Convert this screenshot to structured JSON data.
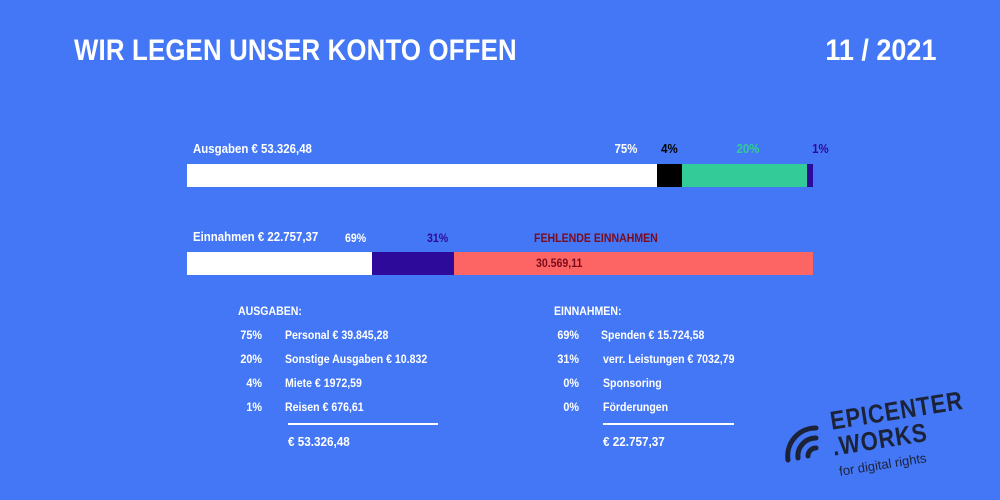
{
  "header": {
    "title": "WIR LEGEN UNSER KONTO OFFEN",
    "period": "11 / 2021"
  },
  "colors": {
    "background": "#4477f5",
    "white": "#ffffff",
    "black": "#000000",
    "green": "#33cc99",
    "navy": "#2d0a99",
    "red": "#fd6464",
    "dark_red": "#7a0b1e"
  },
  "chart_data": [
    {
      "type": "bar",
      "orientation": "horizontal-stacked",
      "label": "Ausgaben € 53.326,48",
      "segments": [
        {
          "name": "Personal",
          "percent": 75,
          "label": "75%",
          "color": "#ffffff",
          "label_color": "#ffffff"
        },
        {
          "name": "Miete",
          "percent": 4,
          "label": "4%",
          "color": "#000000",
          "label_color": "#000000"
        },
        {
          "name": "Sonstige Ausgaben",
          "percent": 20,
          "label": "20%",
          "color": "#33cc99",
          "label_color": "#33cc99"
        },
        {
          "name": "Reisen",
          "percent": 1,
          "label": "1%",
          "color": "#2d0a99",
          "label_color": "#2d0a99"
        }
      ]
    },
    {
      "type": "bar",
      "orientation": "horizontal-stacked",
      "label": "Einnahmen € 22.757,37",
      "segments": [
        {
          "name": "Spenden",
          "value": 15724.58,
          "label": "69%",
          "color": "#ffffff",
          "label_color": "#ffffff"
        },
        {
          "name": "verr. Leistungen",
          "value": 7032.79,
          "label": "31%",
          "color": "#2d0a99",
          "label_color": "#2d0a99"
        },
        {
          "name": "Fehlende Einnahmen",
          "value": 30569.11,
          "label": "FEHLENDE EINNAHMEN",
          "value_label": "30.569,11",
          "color": "#fd6464",
          "label_color": "#7a0b1e"
        }
      ]
    }
  ],
  "summary": {
    "ausgaben": {
      "heading": "AUSGABEN:",
      "rows": [
        {
          "pct": "75%",
          "text": "Personal €  39.845,28"
        },
        {
          "pct": "20%",
          "text": "Sonstige Ausgaben € 10.832"
        },
        {
          "pct": "4%",
          "text": "Miete € 1972,59"
        },
        {
          "pct": "1%",
          "text": "Reisen € 676,61"
        }
      ],
      "total": "€ 53.326,48"
    },
    "einnahmen": {
      "heading": "EINNAHMEN:",
      "rows": [
        {
          "pct": "69%",
          "text": "Spenden  € 15.724,58"
        },
        {
          "pct": "31%",
          "text": "verr. Leistungen € 7032,79"
        },
        {
          "pct": "0%",
          "text": "Sponsoring"
        },
        {
          "pct": "0%",
          "text": "Förderungen"
        }
      ],
      "total": "€ 22.757,37"
    }
  },
  "logo": {
    "line1": "EPICENTER",
    "line2": ".WORKS",
    "tagline": "for digital rights",
    "icon": "signal-waves-icon"
  }
}
